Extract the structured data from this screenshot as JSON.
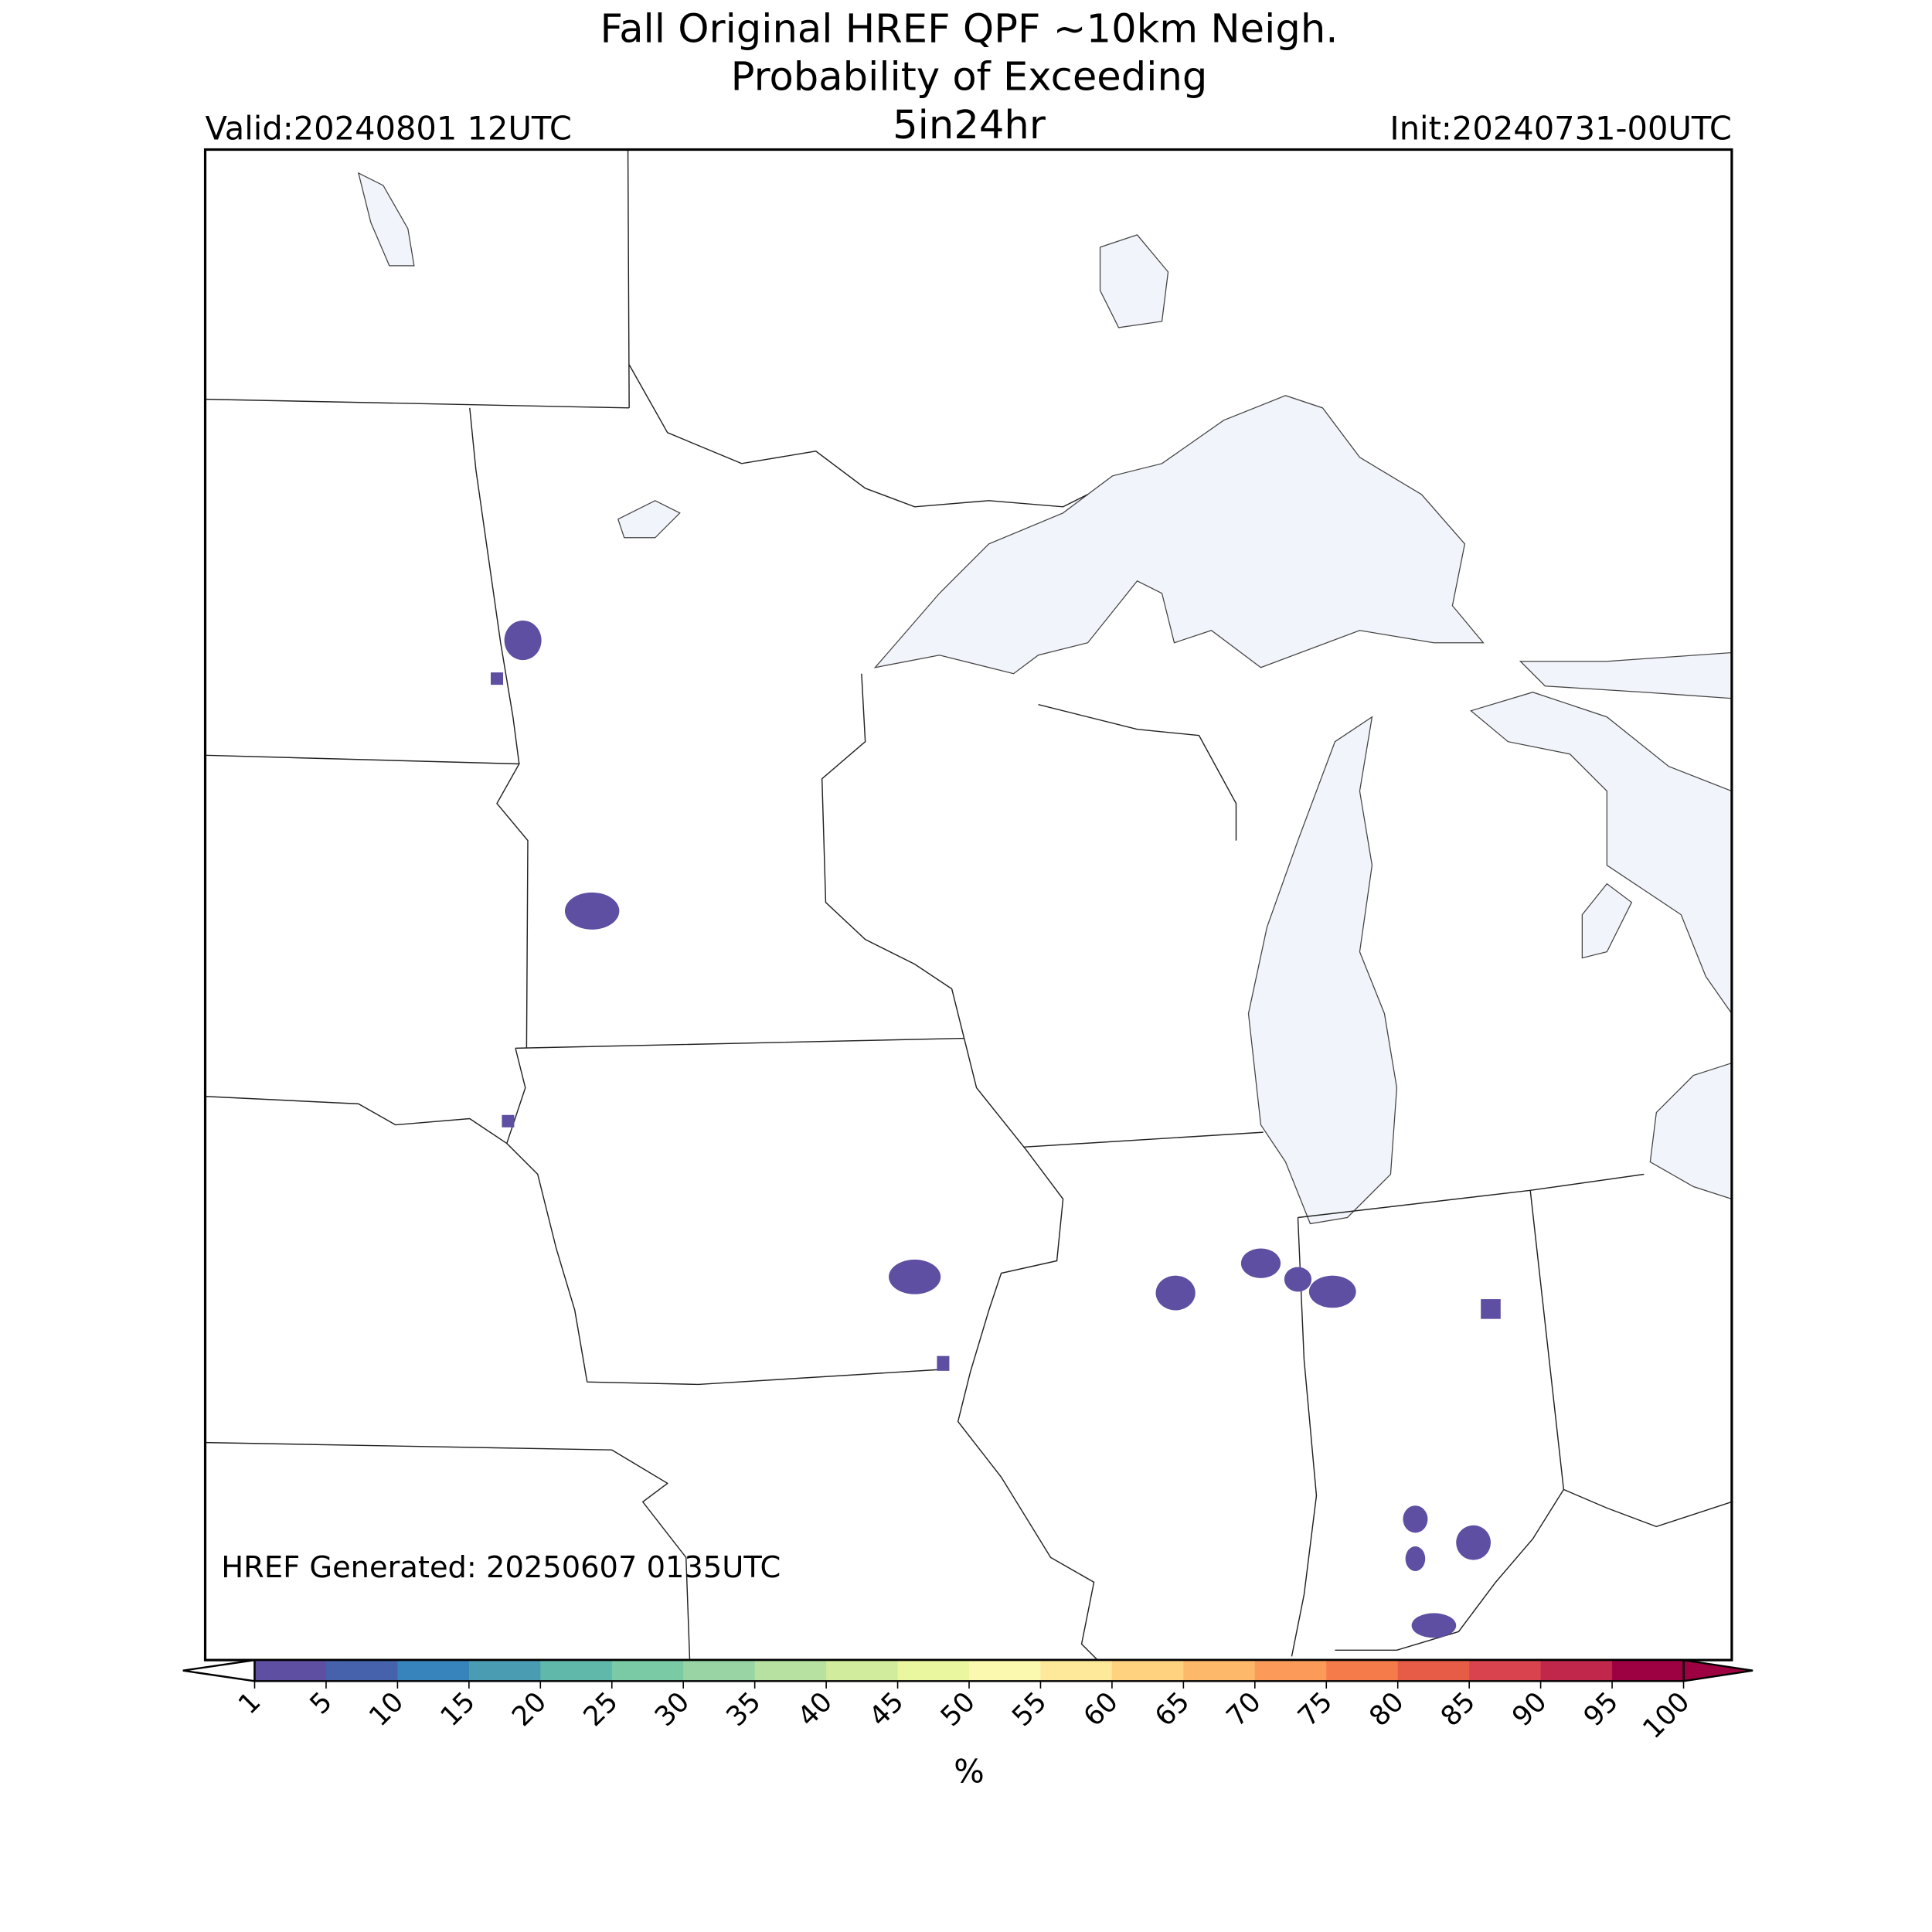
{
  "header": {
    "title": [
      "Fall Original HREF QPF ~10km Neigh.",
      "Probability of Exceeding",
      "5in24hr"
    ],
    "valid": "Valid:20240801 12UTC",
    "init": "Init:20240731-00UTC"
  },
  "footer": {
    "generated": "HREF Generated: 20250607 0135UTC"
  },
  "colorbar": {
    "label": "%",
    "ticks": [
      1,
      5,
      10,
      15,
      20,
      25,
      30,
      35,
      40,
      45,
      50,
      55,
      60,
      65,
      70,
      75,
      80,
      85,
      90,
      95,
      100
    ],
    "colors": [
      "#5e4fa2",
      "#4662ad",
      "#3783bb",
      "#4a9cb2",
      "#5fb8aa",
      "#7acba5",
      "#99d5a4",
      "#b6e1a1",
      "#d1ec9c",
      "#eaf79e",
      "#fbf8b0",
      "#fee89a",
      "#fed27f",
      "#fdb869",
      "#fc9b59",
      "#f67b4a",
      "#e75c47",
      "#d8434d",
      "#c1274a",
      "#9e0142"
    ]
  }
}
